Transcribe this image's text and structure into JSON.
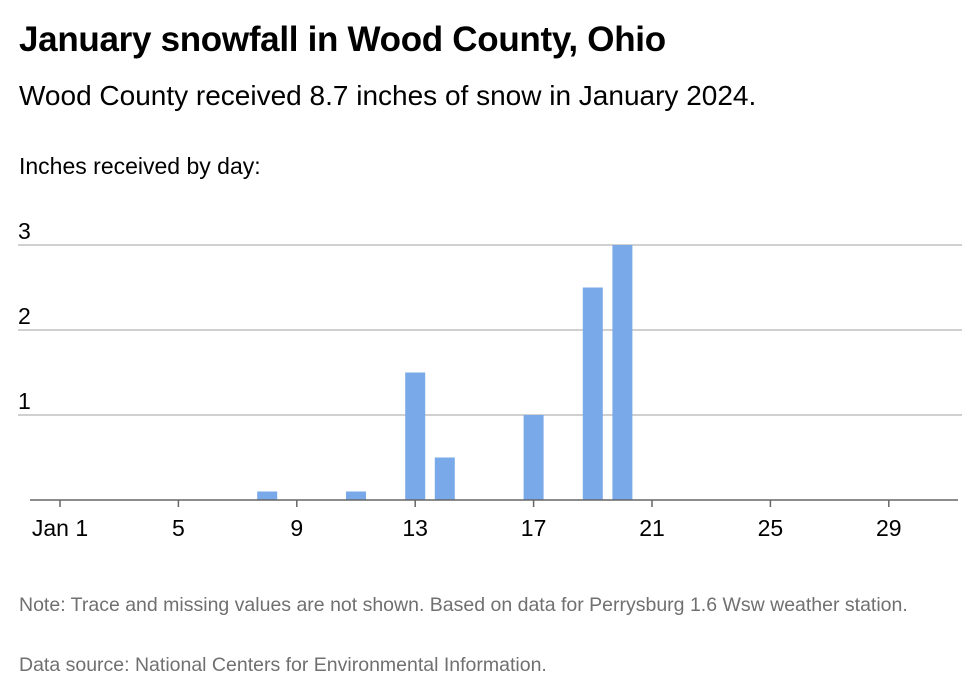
{
  "chart_data": {
    "type": "bar",
    "title": "January snowfall in Wood County, Ohio",
    "subtitle": "Wood County received 8.7 inches of snow in January 2024.",
    "ylabel": "Inches received by day:",
    "x": [
      1,
      2,
      3,
      4,
      5,
      6,
      7,
      8,
      9,
      10,
      11,
      12,
      13,
      14,
      15,
      16,
      17,
      18,
      19,
      20,
      21,
      22,
      23,
      24,
      25,
      26,
      27,
      28,
      29,
      30,
      31
    ],
    "values": [
      0,
      0,
      0,
      0,
      0,
      0,
      0,
      0.1,
      0,
      0,
      0.1,
      0,
      1.5,
      0.5,
      0,
      0,
      1.0,
      0,
      2.5,
      3.0,
      0,
      0,
      0,
      0,
      0,
      0,
      0,
      0,
      0,
      0,
      0
    ],
    "x_ticks": [
      1,
      5,
      9,
      13,
      17,
      21,
      25,
      29
    ],
    "x_tick_labels": [
      "Jan 1",
      "5",
      "9",
      "13",
      "17",
      "21",
      "25",
      "29"
    ],
    "y_ticks": [
      1,
      2,
      3
    ],
    "y_tick_labels": [
      "1",
      "2",
      "3"
    ],
    "ylim": [
      0,
      3
    ],
    "grid": true,
    "bar_color": "#7aa9ea",
    "note": "Note: Trace and missing values are not shown. Based on data for Perrysburg 1.6 Wsw weather station.",
    "source": "Data source: National Centers for Environmental Information."
  }
}
